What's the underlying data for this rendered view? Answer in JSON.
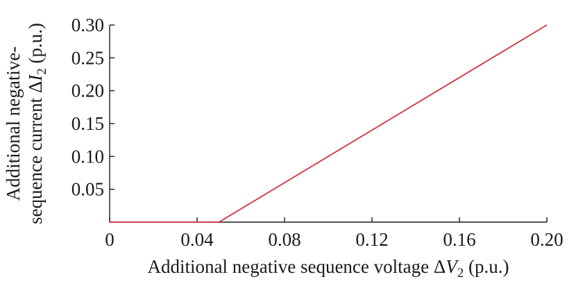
{
  "chart_data": {
    "type": "line",
    "title": "",
    "xlabel": {
      "prefix": "Additional negative sequence voltage Δ",
      "var": "V",
      "sub": "2",
      "suffix": " (p.u.)"
    },
    "ylabel": {
      "line1": "Additional negative-",
      "prefix": "sequence current Δ",
      "var": "I",
      "sub": "2",
      "suffix": " (p.u.)"
    },
    "xlim": [
      0,
      0.2
    ],
    "ylim": [
      0,
      0.3
    ],
    "xticks": [
      {
        "value": 0,
        "label": "0"
      },
      {
        "value": 0.04,
        "label": "0.04"
      },
      {
        "value": 0.08,
        "label": "0.08"
      },
      {
        "value": 0.12,
        "label": "0.12"
      },
      {
        "value": 0.16,
        "label": "0.16"
      },
      {
        "value": 0.2,
        "label": "0.20"
      }
    ],
    "yticks": [
      {
        "value": 0.05,
        "label": "0.05"
      },
      {
        "value": 0.1,
        "label": "0.10"
      },
      {
        "value": 0.15,
        "label": "0.15"
      },
      {
        "value": 0.2,
        "label": "0.20"
      },
      {
        "value": 0.25,
        "label": "0.25"
      },
      {
        "value": 0.3,
        "label": "0.30"
      }
    ],
    "grid": false,
    "series": [
      {
        "color": "#d1323f",
        "x": [
          0,
          0.05,
          0.2
        ],
        "y": [
          0,
          0,
          0.3
        ]
      }
    ]
  }
}
